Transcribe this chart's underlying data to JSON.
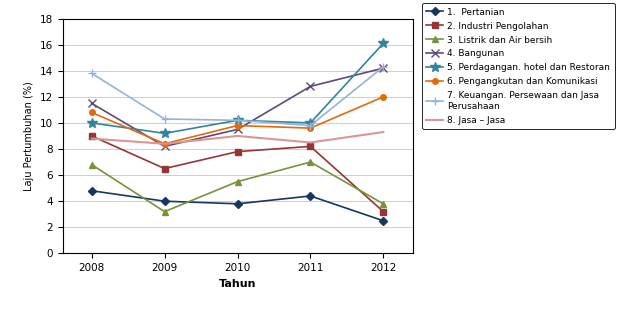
{
  "years": [
    2008,
    2009,
    2010,
    2011,
    2012
  ],
  "series": [
    {
      "label": "1.  Pertanian",
      "values": [
        4.8,
        4.0,
        3.8,
        4.4,
        2.5
      ],
      "color": "#17375E",
      "marker": "D",
      "markersize": 4,
      "linewidth": 1.2
    },
    {
      "label": "2. Industri Pengolahan",
      "values": [
        9.0,
        6.5,
        7.8,
        8.2,
        3.2
      ],
      "color": "#943634",
      "marker": "s",
      "markersize": 4,
      "linewidth": 1.2
    },
    {
      "label": "3. Listrik dan Air bersih",
      "values": [
        6.8,
        3.2,
        5.5,
        7.0,
        3.8
      ],
      "color": "#76933C",
      "marker": "^",
      "markersize": 4,
      "linewidth": 1.2
    },
    {
      "label": "4. Bangunan",
      "values": [
        11.5,
        8.2,
        9.5,
        12.8,
        14.2
      ],
      "color": "#5F497A",
      "marker": "x",
      "markersize": 6,
      "linewidth": 1.2
    },
    {
      "label": "5. Perdagangan. hotel dan Restoran",
      "values": [
        10.0,
        9.2,
        10.2,
        10.0,
        16.1
      ],
      "color": "#31849B",
      "marker": "*",
      "markersize": 7,
      "linewidth": 1.2
    },
    {
      "label": "6. Pengangkutan dan Komunikasi",
      "values": [
        10.8,
        8.4,
        9.8,
        9.6,
        12.0
      ],
      "color": "#E26B0A",
      "marker": "o",
      "markersize": 4,
      "linewidth": 1.2
    },
    {
      "label": "7. Keuangan. Persewaan dan Jasa\nPerusahaan",
      "values": [
        13.8,
        10.3,
        10.2,
        9.8,
        14.3
      ],
      "color": "#95B3D7",
      "marker": "+",
      "markersize": 6,
      "linewidth": 1.2
    },
    {
      "label": "8. Jasa – Jasa",
      "values": [
        8.8,
        8.4,
        9.0,
        8.5,
        9.3
      ],
      "color": "#D99694",
      "marker": null,
      "markersize": 4,
      "linewidth": 1.5
    }
  ],
  "xlabel": "Tahun",
  "ylabel": "Laju Pertumbuhan (%)",
  "ylim": [
    0,
    18
  ],
  "yticks": [
    0,
    2,
    4,
    6,
    8,
    10,
    12,
    14,
    16,
    18
  ],
  "xticks": [
    2008,
    2009,
    2010,
    2011,
    2012
  ],
  "legend_fontsize": 6.5,
  "axis_label_fontsize": 8,
  "tick_fontsize": 7.5,
  "background_color": "#FFFFFF"
}
